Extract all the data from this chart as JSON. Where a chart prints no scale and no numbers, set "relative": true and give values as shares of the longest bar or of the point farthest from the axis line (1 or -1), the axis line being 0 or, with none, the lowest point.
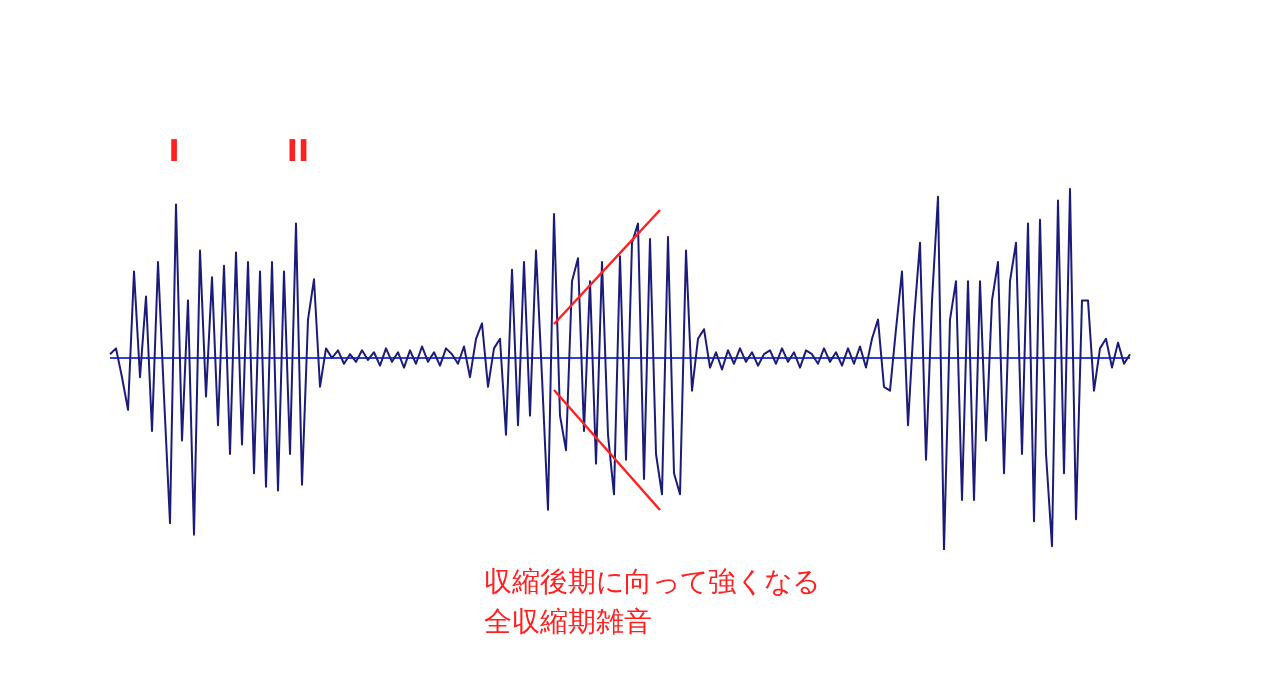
{
  "chart_data": {
    "type": "line",
    "relative": true,
    "marker": "none",
    "categories": [
      null,
      null,
      null,
      null,
      null,
      null,
      null,
      null,
      null,
      null,
      null,
      null,
      null,
      null,
      null,
      null,
      null,
      null,
      null,
      null,
      null,
      null,
      null,
      null,
      null,
      null,
      null,
      null,
      null,
      null,
      null,
      null,
      null,
      null,
      null,
      null,
      null,
      null,
      null,
      null,
      null,
      null,
      null,
      null,
      null,
      null,
      null,
      null,
      null,
      null,
      null,
      null,
      null,
      null,
      null,
      null,
      null,
      null,
      null,
      null,
      null,
      null,
      null,
      null,
      null,
      null,
      null,
      null,
      null,
      null,
      null,
      null,
      null,
      null,
      null,
      null,
      null,
      null,
      null,
      null,
      null,
      null,
      null,
      null,
      null,
      null,
      null,
      null,
      null,
      null,
      null,
      null,
      null,
      null,
      null,
      null,
      null,
      null,
      null,
      null,
      null,
      null,
      null,
      null,
      null,
      null,
      null,
      null,
      null,
      null,
      null,
      null,
      null,
      null,
      null,
      null,
      null,
      null,
      null,
      null,
      null,
      null,
      null,
      null,
      null,
      null,
      null,
      null,
      null,
      null,
      null,
      null,
      null,
      null,
      null,
      null,
      null,
      null,
      null,
      null,
      null,
      null,
      null,
      null,
      null,
      null,
      null,
      null,
      null,
      null,
      null,
      null,
      null,
      null,
      null,
      null,
      null,
      null,
      null,
      null,
      null,
      null,
      null,
      null,
      null,
      null,
      null,
      null,
      null,
      null,
      null
    ],
    "series": [
      {
        "color": "#1c1c78",
        "values": [
          0.02,
          0.05,
          -0.1,
          -0.27,
          0.45,
          -0.1,
          0.32,
          -0.38,
          0.5,
          -0.2,
          -0.86,
          0.8,
          -0.43,
          0.3,
          -0.92,
          0.56,
          -0.2,
          0.42,
          -0.35,
          0.48,
          -0.5,
          0.55,
          -0.45,
          0.5,
          -0.6,
          0.45,
          -0.67,
          0.5,
          -0.69,
          0.45,
          -0.5,
          0.7,
          -0.66,
          0.2,
          0.41,
          -0.15,
          0.05,
          0,
          0.04,
          -0.03,
          0.02,
          -0.02,
          0.04,
          -0.01,
          0.03,
          -0.04,
          0.05,
          -0.02,
          0.03,
          -0.05,
          0.04,
          -0.03,
          0.06,
          -0.02,
          0.03,
          -0.04,
          0.05,
          0.02,
          -0.03,
          0.06,
          -0.1,
          0.1,
          0.18,
          -0.15,
          0.05,
          0.1,
          -0.4,
          0.46,
          -0.35,
          0.5,
          -0.3,
          0.56,
          -0.1,
          -0.79,
          0.75,
          -0.3,
          -0.48,
          0.4,
          0.52,
          -0.38,
          0.4,
          -0.55,
          0.5,
          -0.4,
          -0.71,
          0.53,
          -0.53,
          0.6,
          0.7,
          -0.63,
          0.62,
          -0.5,
          -0.71,
          0.63,
          -0.6,
          -0.71,
          0.56,
          -0.17,
          0.1,
          0.15,
          -0.05,
          0.03,
          -0.06,
          0.04,
          -0.03,
          0.05,
          -0.02,
          0.03,
          -0.04,
          0.02,
          0.04,
          -0.03,
          0.05,
          -0.02,
          0.03,
          -0.05,
          0.04,
          0.02,
          -0.03,
          0.05,
          -0.02,
          0.03,
          -0.04,
          0.05,
          -0.03,
          0.06,
          -0.05,
          0.1,
          0.2,
          -0.15,
          -0.17,
          0.15,
          0.45,
          -0.35,
          0.2,
          0.6,
          -0.53,
          0.3,
          0.84,
          -1,
          0.2,
          0.4,
          -0.74,
          0.4,
          -0.74,
          0.4,
          -0.43,
          0.3,
          0.5,
          -0.6,
          0.4,
          0.6,
          -0.5,
          0.7,
          -0.85,
          0.72,
          -0.5,
          -0.98,
          0.82,
          -0.6,
          0.88,
          -0.84,
          0.3,
          0.3,
          -0.17,
          0.05,
          0.1,
          -0.05,
          0.08,
          -0.03,
          0.02
        ]
      }
    ],
    "ref_lines": [
      {
        "axis": "y",
        "value": 0,
        "color": "#3040e0"
      }
    ],
    "annotations": [
      "I",
      "II",
      "収縮後期に向って強くなる",
      "全収縮期雑音"
    ]
  }
}
